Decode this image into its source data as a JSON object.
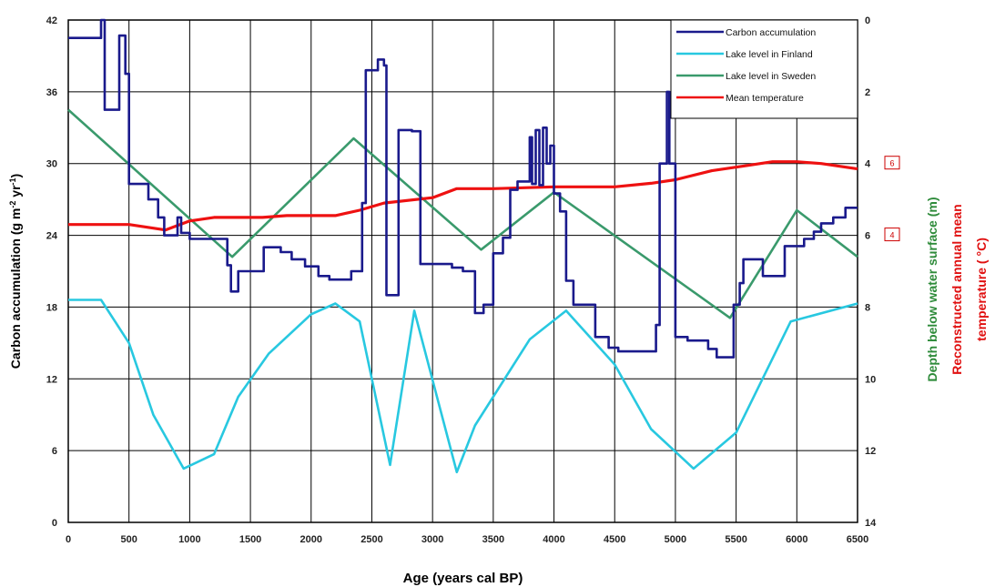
{
  "chart_data": {
    "type": "line",
    "xlabel": "Age (years cal BP)",
    "x_ticks": [
      "0",
      "500",
      "1000",
      "1500",
      "2000",
      "2500",
      "3000",
      "3500",
      "4000",
      "4500",
      "5000",
      "5500",
      "6000",
      "6500"
    ],
    "xlim": [
      0,
      6500
    ],
    "y_left": {
      "label_main": "Carbon accumulation (g m",
      "label_sup1": "-2",
      "label_mid": " yr",
      "label_sup2": "-1",
      "label_end": ")",
      "ticks": [
        "0",
        "6",
        "12",
        "18",
        "24",
        "30",
        "36",
        "42"
      ],
      "ylim": [
        0,
        42
      ]
    },
    "y_right": {
      "ticks": [
        "0",
        "2",
        "4",
        "6",
        "8",
        "10",
        "12",
        "14"
      ],
      "ylim": [
        0,
        14
      ],
      "reversed": true,
      "label_depth": "Depth below water surface (m)",
      "label_temp_1": "Reconstructed annual mean",
      "label_temp_2": "temperature ( °C)",
      "temp_marks": [
        {
          "label": "6",
          "depth": 4
        },
        {
          "label": "4",
          "depth": 6
        }
      ]
    },
    "series": [
      {
        "name": "Carbon accumulation",
        "color": "#1a1a8c",
        "axis": "left",
        "step": true,
        "points": [
          [
            0,
            40.5
          ],
          [
            270,
            40.5
          ],
          [
            270,
            42
          ],
          [
            300,
            42
          ],
          [
            300,
            34.5
          ],
          [
            420,
            34.5
          ],
          [
            420,
            40.7
          ],
          [
            470,
            40.7
          ],
          [
            470,
            37.5
          ],
          [
            500,
            37.5
          ],
          [
            500,
            28.3
          ],
          [
            660,
            28.3
          ],
          [
            660,
            27
          ],
          [
            740,
            27
          ],
          [
            740,
            25.5
          ],
          [
            790,
            25.5
          ],
          [
            790,
            24
          ],
          [
            900,
            24
          ],
          [
            900,
            25.5
          ],
          [
            930,
            25.5
          ],
          [
            930,
            24.2
          ],
          [
            1000,
            24.2
          ],
          [
            1000,
            23.7
          ],
          [
            1310,
            23.7
          ],
          [
            1310,
            21.5
          ],
          [
            1340,
            21.5
          ],
          [
            1340,
            19.3
          ],
          [
            1400,
            19.3
          ],
          [
            1400,
            21
          ],
          [
            1610,
            21
          ],
          [
            1610,
            23
          ],
          [
            1750,
            23
          ],
          [
            1750,
            22.6
          ],
          [
            1840,
            22.6
          ],
          [
            1840,
            22
          ],
          [
            1950,
            22
          ],
          [
            1950,
            21.4
          ],
          [
            2060,
            21.4
          ],
          [
            2060,
            20.6
          ],
          [
            2150,
            20.6
          ],
          [
            2150,
            20.3
          ],
          [
            2330,
            20.3
          ],
          [
            2330,
            21
          ],
          [
            2420,
            21
          ],
          [
            2420,
            26.7
          ],
          [
            2450,
            26.7
          ],
          [
            2450,
            37.8
          ],
          [
            2550,
            37.8
          ],
          [
            2550,
            38.7
          ],
          [
            2600,
            38.7
          ],
          [
            2600,
            38.2
          ],
          [
            2620,
            38.2
          ],
          [
            2620,
            19
          ],
          [
            2720,
            19
          ],
          [
            2720,
            32.8
          ],
          [
            2830,
            32.8
          ],
          [
            2830,
            32.7
          ],
          [
            2900,
            32.7
          ],
          [
            2900,
            21.6
          ],
          [
            3160,
            21.6
          ],
          [
            3160,
            21.3
          ],
          [
            3250,
            21.3
          ],
          [
            3250,
            21
          ],
          [
            3350,
            21
          ],
          [
            3350,
            17.5
          ],
          [
            3420,
            17.5
          ],
          [
            3420,
            18.2
          ],
          [
            3500,
            18.2
          ],
          [
            3500,
            22.5
          ],
          [
            3580,
            22.5
          ],
          [
            3580,
            23.8
          ],
          [
            3640,
            23.8
          ],
          [
            3640,
            27.8
          ],
          [
            3700,
            27.8
          ],
          [
            3700,
            28.5
          ],
          [
            3800,
            28.5
          ],
          [
            3800,
            32.2
          ],
          [
            3820,
            32.2
          ],
          [
            3820,
            28.3
          ],
          [
            3850,
            28.3
          ],
          [
            3850,
            32.8
          ],
          [
            3880,
            32.8
          ],
          [
            3880,
            28.2
          ],
          [
            3910,
            28.2
          ],
          [
            3910,
            33
          ],
          [
            3940,
            33
          ],
          [
            3940,
            30
          ],
          [
            3970,
            30
          ],
          [
            3970,
            31.5
          ],
          [
            4000,
            31.5
          ],
          [
            4000,
            27.5
          ],
          [
            4050,
            27.5
          ],
          [
            4050,
            26
          ],
          [
            4100,
            26
          ],
          [
            4100,
            20.2
          ],
          [
            4160,
            20.2
          ],
          [
            4160,
            18.2
          ],
          [
            4340,
            18.2
          ],
          [
            4340,
            15.5
          ],
          [
            4450,
            15.5
          ],
          [
            4450,
            14.6
          ],
          [
            4530,
            14.6
          ],
          [
            4530,
            14.3
          ],
          [
            4840,
            14.3
          ],
          [
            4840,
            16.5
          ],
          [
            4870,
            16.5
          ],
          [
            4870,
            30
          ],
          [
            4930,
            30
          ],
          [
            4930,
            36
          ],
          [
            4950,
            36
          ],
          [
            4950,
            30
          ],
          [
            5000,
            30
          ],
          [
            5000,
            15.5
          ],
          [
            5100,
            15.5
          ],
          [
            5100,
            15.2
          ],
          [
            5270,
            15.2
          ],
          [
            5270,
            14.5
          ],
          [
            5340,
            14.5
          ],
          [
            5340,
            13.8
          ],
          [
            5480,
            13.8
          ],
          [
            5480,
            18.2
          ],
          [
            5530,
            18.2
          ],
          [
            5530,
            20
          ],
          [
            5560,
            20
          ],
          [
            5560,
            22
          ],
          [
            5720,
            22
          ],
          [
            5720,
            20.6
          ],
          [
            5900,
            20.6
          ],
          [
            5900,
            23.1
          ],
          [
            6060,
            23.1
          ],
          [
            6060,
            23.7
          ],
          [
            6140,
            23.7
          ],
          [
            6140,
            24.3
          ],
          [
            6200,
            24.3
          ],
          [
            6200,
            25
          ],
          [
            6300,
            25
          ],
          [
            6300,
            25.5
          ],
          [
            6400,
            25.5
          ],
          [
            6400,
            26.3
          ],
          [
            6500,
            26.3
          ]
        ]
      },
      {
        "name": "Lake level in Finland",
        "color": "#28c8e0",
        "axis": "right",
        "points": [
          [
            0,
            7.8
          ],
          [
            270,
            7.8
          ],
          [
            500,
            9
          ],
          [
            700,
            11
          ],
          [
            950,
            12.5
          ],
          [
            1200,
            12.1
          ],
          [
            1400,
            10.5
          ],
          [
            1650,
            9.3
          ],
          [
            2000,
            8.2
          ],
          [
            2200,
            7.9
          ],
          [
            2400,
            8.4
          ],
          [
            2650,
            12.4
          ],
          [
            2850,
            8.1
          ],
          [
            3200,
            12.6
          ],
          [
            3350,
            11.3
          ],
          [
            3800,
            8.9
          ],
          [
            4100,
            8.1
          ],
          [
            4500,
            9.6
          ],
          [
            4800,
            11.4
          ],
          [
            5150,
            12.5
          ],
          [
            5500,
            11.5
          ],
          [
            5950,
            8.4
          ],
          [
            6500,
            7.9
          ]
        ]
      },
      {
        "name": "Lake level in Sweden",
        "color": "#3a9a6c",
        "axis": "right",
        "points": [
          [
            0,
            2.5
          ],
          [
            1350,
            6.6
          ],
          [
            2350,
            3.3
          ],
          [
            3400,
            6.4
          ],
          [
            4000,
            4.8
          ],
          [
            5450,
            8.3
          ],
          [
            6000,
            5.3
          ],
          [
            6500,
            6.6
          ]
        ]
      },
      {
        "name": "Mean temperature",
        "color": "#ee1111",
        "axis": "right",
        "points": [
          [
            0,
            5.7
          ],
          [
            500,
            5.7
          ],
          [
            800,
            5.85
          ],
          [
            1000,
            5.6
          ],
          [
            1200,
            5.5
          ],
          [
            1600,
            5.5
          ],
          [
            1800,
            5.45
          ],
          [
            2000,
            5.45
          ],
          [
            2200,
            5.45
          ],
          [
            2400,
            5.3
          ],
          [
            2600,
            5.1
          ],
          [
            3000,
            4.95
          ],
          [
            3200,
            4.7
          ],
          [
            3500,
            4.7
          ],
          [
            4000,
            4.65
          ],
          [
            4500,
            4.65
          ],
          [
            4800,
            4.55
          ],
          [
            5000,
            4.45
          ],
          [
            5300,
            4.2
          ],
          [
            5600,
            4.05
          ],
          [
            5800,
            3.95
          ],
          [
            6000,
            3.95
          ],
          [
            6200,
            4
          ],
          [
            6500,
            4.15
          ]
        ]
      }
    ],
    "legend": {
      "placement": "top-right",
      "entries": [
        "Carbon accumulation",
        "Lake level in Finland",
        "Lake level in Sweden",
        "Mean temperature"
      ]
    },
    "grid": true
  }
}
